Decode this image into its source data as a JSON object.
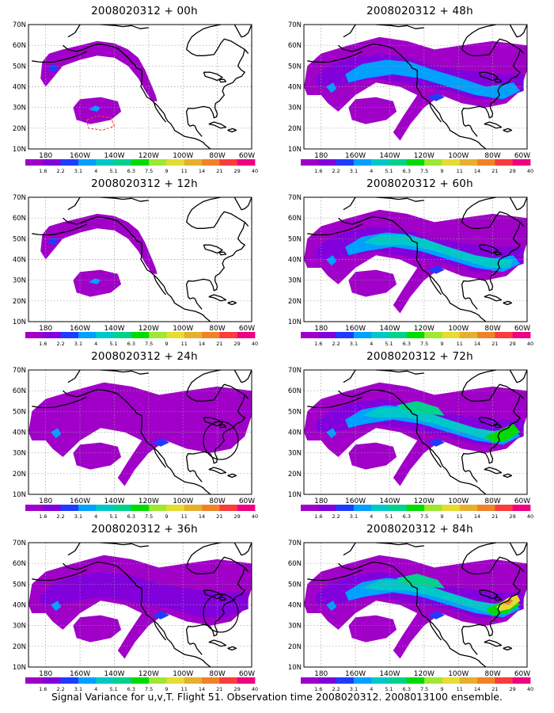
{
  "caption": "Signal Variance for u,v,T. Flight 51. Observation time 2008020312. 2008013100 ensemble.",
  "map": {
    "lon_labels": [
      "180",
      "160W",
      "140W",
      "120W",
      "100W",
      "80W",
      "60W"
    ],
    "lat_labels": [
      "10N",
      "20N",
      "30N",
      "40N",
      "50N",
      "60N",
      "70N"
    ],
    "lon_range": [
      170,
      300
    ],
    "lat_range": [
      10,
      70
    ]
  },
  "colorbar": {
    "labels": [
      "1.6",
      "2.2",
      "3.1",
      "4",
      "5.1",
      "6.3",
      "7.5",
      "9",
      "11",
      "14",
      "21",
      "29",
      "40"
    ],
    "colors": [
      "#a000c8",
      "#8200dc",
      "#1e3cff",
      "#00a0ff",
      "#00c8c8",
      "#00d28c",
      "#00dc00",
      "#a0e632",
      "#e6dc32",
      "#e6af2d",
      "#f08228",
      "#fa3c3c",
      "#f00082"
    ]
  },
  "colors": {
    "land_outline": "#000000",
    "grid": "#9a9a9a",
    "dashed_contour": "#ff3c3c"
  },
  "panels": [
    {
      "title": "2008020312 + 00h",
      "level": 1,
      "dashed_contour": true
    },
    {
      "title": "2008020312 + 48h",
      "level": 4
    },
    {
      "title": "2008020312 + 12h",
      "level": 1
    },
    {
      "title": "2008020312 + 60h",
      "level": 5
    },
    {
      "title": "2008020312 + 24h",
      "level": 2,
      "circle": true
    },
    {
      "title": "2008020312 + 72h",
      "level": 6
    },
    {
      "title": "2008020312 + 36h",
      "level": 3,
      "circle": true
    },
    {
      "title": "2008020312 + 84h",
      "level": 7
    }
  ]
}
